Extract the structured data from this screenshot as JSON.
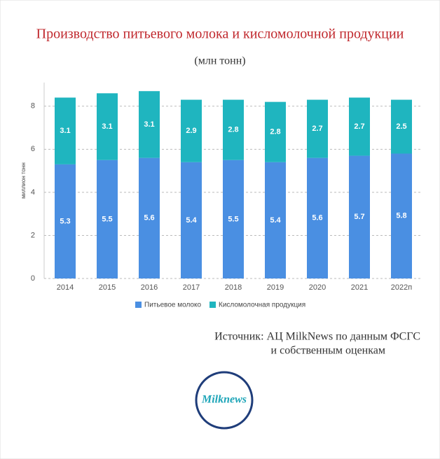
{
  "chart_data": {
    "type": "bar",
    "stacked": true,
    "title": "Производство питьевого молока и кисломолочной продукции",
    "subtitle": "(млн тонн)",
    "y_label": "миллион тонн",
    "categories": [
      "2014",
      "2015",
      "2016",
      "2017",
      "2018",
      "2019",
      "2020",
      "2021",
      "2022п"
    ],
    "series": [
      {
        "name": "Питьевое молоко",
        "color": "#4a8fe2",
        "values": [
          5.3,
          5.5,
          5.6,
          5.4,
          5.5,
          5.4,
          5.6,
          5.7,
          5.8
        ]
      },
      {
        "name": "Кисломолочная продукция",
        "color": "#1fb5bf",
        "values": [
          3.1,
          3.1,
          3.1,
          2.9,
          2.8,
          2.8,
          2.7,
          2.7,
          2.5
        ]
      }
    ],
    "ylim": [
      0,
      9
    ],
    "yticks": [
      0,
      2,
      4,
      6,
      8
    ],
    "grid": true
  },
  "source": [
    "Источник: АЦ MilkNews по данным ФСГС",
    "и собственным оценкам"
  ],
  "logo": "Milknews"
}
